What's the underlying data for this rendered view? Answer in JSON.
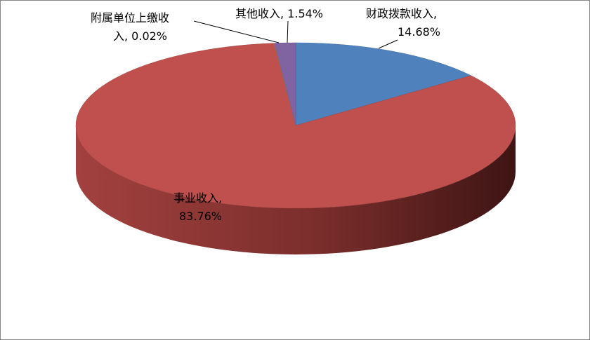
{
  "chart_data": {
    "type": "pie",
    "style": "3d",
    "title": "",
    "slices": [
      {
        "label": "财政拨款收入",
        "value": 14.68,
        "value_text": "14.68%",
        "color": "#4F81BD"
      },
      {
        "label": "事业收入",
        "value": 83.76,
        "value_text": "83.76%",
        "color": "#C0504D"
      },
      {
        "label": "附属单位上缴收入",
        "value": 0.02,
        "value_text": "0.02%",
        "color": "#9BBB59"
      },
      {
        "label": "其他收入",
        "value": 1.54,
        "value_text": "1.54%",
        "color": "#8064A2"
      }
    ],
    "data_labels": {
      "caizheng_line1": "财政拨款收入,",
      "caizheng_line2": "14.68%",
      "shiye_line1": "事业收入,",
      "shiye_line2": "83.76%",
      "fushu_line1": "附属单位上缴收",
      "fushu_line2": "入, 0.02%",
      "qita_line1": "其他收入, 1.54%"
    },
    "legend": "none"
  }
}
